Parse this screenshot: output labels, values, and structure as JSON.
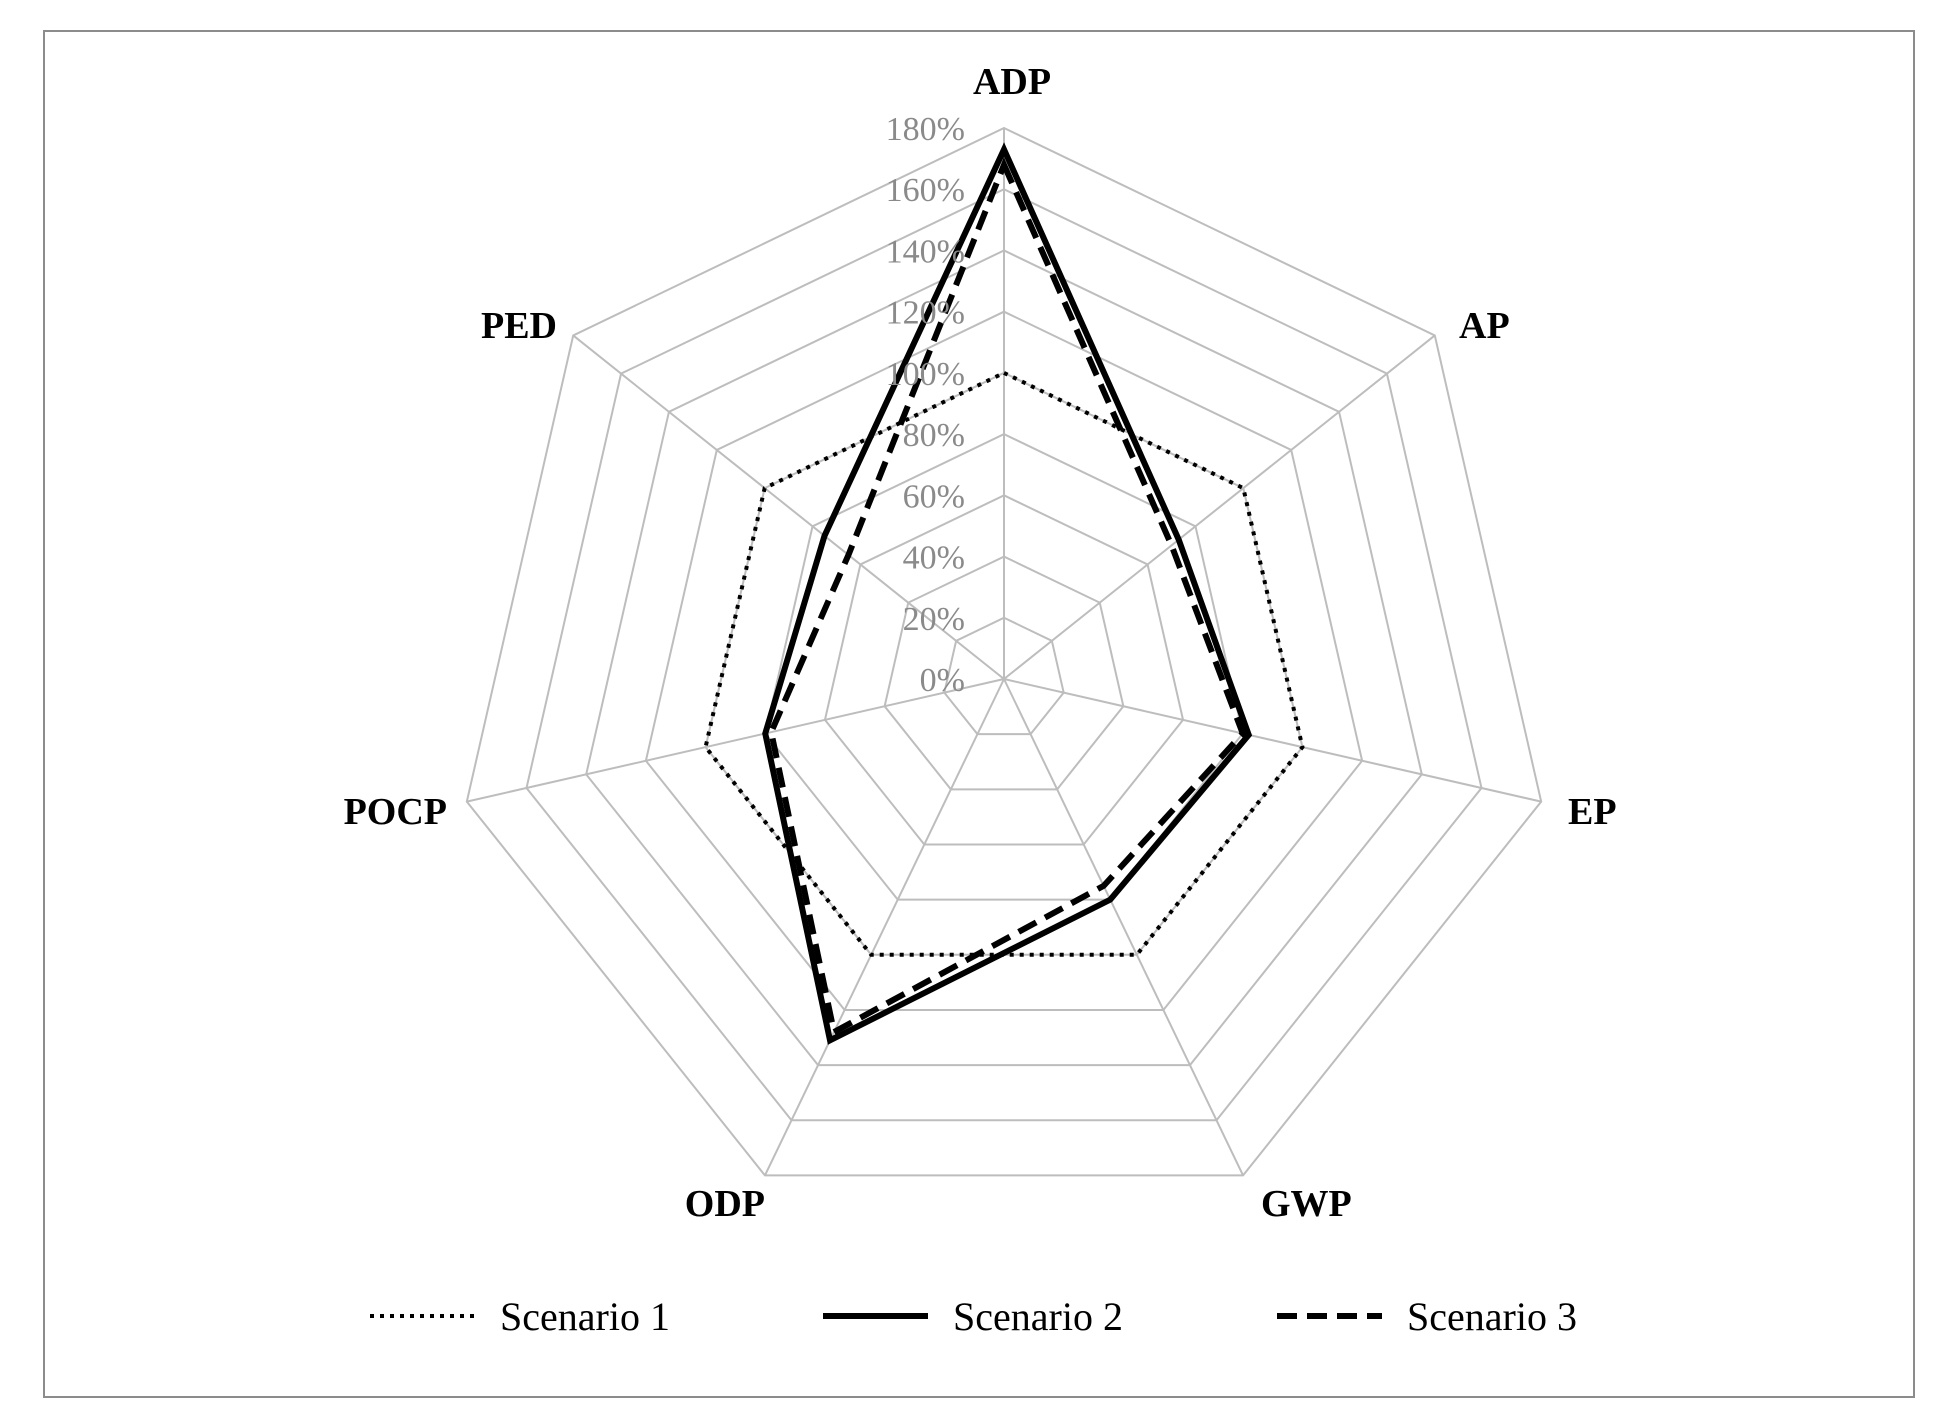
{
  "chart_data": {
    "type": "radar",
    "axes": [
      "ADP",
      "AP",
      "EP",
      "GWP",
      "ODP",
      "POCP",
      "PED"
    ],
    "ticks": [
      "0%",
      "20%",
      "40%",
      "60%",
      "80%",
      "100%",
      "120%",
      "140%",
      "160%",
      "180%"
    ],
    "rlim": [
      0,
      180
    ],
    "unit": "%",
    "grid": true,
    "legend_position": "bottom",
    "series": [
      {
        "name": "Scenario 1",
        "style": "dotted",
        "values": [
          100,
          100,
          100,
          100,
          100,
          100,
          100
        ]
      },
      {
        "name": "Scenario 2",
        "style": "solid",
        "values": [
          173,
          73,
          82,
          80,
          131,
          80,
          75
        ]
      },
      {
        "name": "Scenario 3",
        "style": "dashed",
        "values": [
          168,
          70,
          80,
          75,
          128,
          78,
          65
        ]
      }
    ]
  },
  "colors": {
    "series": "#000000",
    "grid": "#bdbdbd",
    "tick_text": "#8a8a8a",
    "frame": "#8c8c8c"
  }
}
